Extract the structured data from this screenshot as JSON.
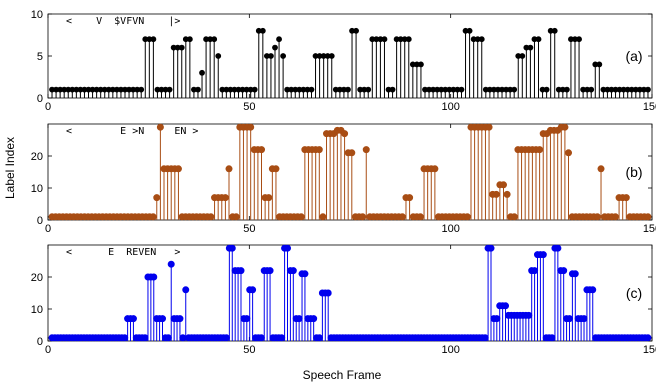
{
  "chart_data": [
    {
      "type": "stem",
      "panel_tag": "(a)",
      "color": "#000000",
      "ylim": [
        0,
        10
      ],
      "yticks": [
        "0",
        "5",
        "10"
      ],
      "annotation": "<    V  $VFVN    |>",
      "values": [
        1,
        1,
        1,
        1,
        1,
        1,
        1,
        1,
        1,
        1,
        1,
        1,
        1,
        1,
        1,
        1,
        1,
        1,
        1,
        1,
        1,
        1,
        1,
        7,
        7,
        7,
        1,
        1,
        1,
        1,
        6,
        6,
        6,
        7,
        7,
        1,
        1,
        3,
        7,
        7,
        7,
        5,
        1,
        1,
        1,
        1,
        1,
        1,
        1,
        1,
        1,
        8,
        8,
        5,
        5,
        6,
        7,
        5,
        1,
        1,
        1,
        1,
        1,
        1,
        1,
        5,
        5,
        5,
        5,
        5,
        1,
        1,
        1,
        1,
        8,
        8,
        1,
        1,
        1,
        7,
        7,
        7,
        7,
        1,
        1,
        7,
        7,
        7,
        7,
        4,
        4,
        4,
        1,
        1,
        1,
        1,
        1,
        1,
        1,
        1,
        1,
        1,
        8,
        8,
        7,
        7,
        7,
        1,
        1,
        1,
        1,
        1,
        1,
        1,
        1,
        5,
        5,
        6,
        6,
        7,
        7,
        1,
        1,
        8,
        8,
        1,
        1,
        1,
        7,
        7,
        7,
        1,
        1,
        1,
        4,
        4,
        1,
        1,
        1,
        1,
        1,
        1,
        1,
        1,
        1,
        1,
        1,
        1
      ],
      "xlim": [
        0,
        150
      ],
      "xticks": [
        "0",
        "50",
        "100",
        "150"
      ]
    },
    {
      "type": "stem",
      "panel_tag": "(b)",
      "color": "#a84d14",
      "ylim": [
        0,
        30
      ],
      "yticks": [
        "0",
        "10",
        "20"
      ],
      "annotation": "<        E >N     EN >",
      "values": [
        1,
        1,
        1,
        1,
        1,
        1,
        1,
        1,
        1,
        1,
        1,
        1,
        1,
        1,
        1,
        1,
        1,
        1,
        1,
        1,
        1,
        1,
        1,
        1,
        1,
        1,
        1,
        1,
        1,
        7,
        29,
        16,
        16,
        16,
        16,
        16,
        1,
        1,
        1,
        1,
        1,
        1,
        1,
        1,
        1,
        7,
        7,
        7,
        7,
        16,
        1,
        1,
        29,
        29,
        29,
        29,
        22,
        22,
        22,
        7,
        7,
        16,
        16,
        1,
        1,
        1,
        1,
        1,
        1,
        1,
        22,
        22,
        22,
        22,
        22,
        1,
        27,
        27,
        27,
        28,
        28,
        27,
        21,
        21,
        1,
        1,
        1,
        22,
        1,
        1,
        1,
        1,
        1,
        1,
        1,
        1,
        1,
        1,
        7,
        7,
        1,
        1,
        1,
        16,
        16,
        16,
        16,
        1,
        1,
        1,
        1,
        1,
        1,
        1,
        1,
        1,
        29,
        29,
        29,
        29,
        29,
        29,
        8,
        8,
        11,
        11,
        8,
        1,
        1,
        22,
        22,
        22,
        22,
        22,
        22,
        22,
        27,
        27,
        28,
        28,
        28,
        29,
        29,
        21,
        1,
        1,
        1,
        1,
        1,
        1,
        1,
        1,
        16,
        1,
        1,
        1,
        1,
        7,
        7,
        7,
        1,
        1,
        1,
        1,
        1,
        1
      ],
      "xlim": [
        0,
        150
      ],
      "xticks": [
        "0",
        "50",
        "100",
        "150"
      ]
    },
    {
      "type": "stem",
      "panel_tag": "(c)",
      "color": "#0000ee",
      "ylim": [
        0,
        30
      ],
      "yticks": [
        "0",
        "10",
        "20"
      ],
      "annotation": "<      E  REVEN   >",
      "values": [
        1,
        1,
        1,
        1,
        1,
        1,
        1,
        1,
        1,
        1,
        1,
        1,
        1,
        1,
        1,
        1,
        1,
        1,
        1,
        1,
        1,
        1,
        1,
        1,
        1,
        1,
        7,
        7,
        7,
        1,
        1,
        1,
        1,
        20,
        20,
        20,
        7,
        7,
        7,
        1,
        1,
        24,
        7,
        7,
        7,
        1,
        16,
        1,
        1,
        1,
        1,
        1,
        1,
        1,
        1,
        1,
        1,
        1,
        1,
        1,
        1,
        29,
        29,
        22,
        22,
        22,
        7,
        7,
        16,
        16,
        1,
        1,
        1,
        22,
        22,
        22,
        1,
        1,
        1,
        1,
        29,
        29,
        22,
        22,
        7,
        7,
        21,
        21,
        7,
        7,
        7,
        1,
        1,
        15,
        15,
        15,
        1,
        1,
        1,
        1,
        1,
        1,
        1,
        1,
        1,
        1,
        1,
        1,
        1,
        1,
        1,
        1,
        1,
        1,
        1,
        1,
        1,
        1,
        1,
        1,
        1,
        1,
        1,
        1,
        1,
        1,
        1,
        1,
        1,
        1,
        1,
        1,
        1,
        1,
        1,
        1,
        1,
        1,
        1,
        1,
        1,
        1,
        1,
        1,
        1,
        1,
        1,
        1,
        1,
        1,
        29,
        29,
        7,
        7,
        11,
        11,
        11,
        8,
        8,
        8,
        8,
        8,
        8,
        8,
        8,
        22,
        22,
        27,
        27,
        27,
        1,
        1,
        1,
        29,
        29,
        22,
        22,
        7,
        7,
        21,
        21,
        7,
        7,
        7,
        16,
        16,
        16,
        1,
        1,
        1,
        1,
        1,
        1,
        1,
        1,
        1,
        1,
        1,
        1,
        1,
        1,
        1,
        1,
        1,
        1,
        1
      ],
      "xlim": [
        0,
        150
      ],
      "xticks": [
        "0",
        "50",
        "100",
        "150"
      ]
    }
  ],
  "xlabel": "Speech Frame",
  "ylabel": "Label Index"
}
